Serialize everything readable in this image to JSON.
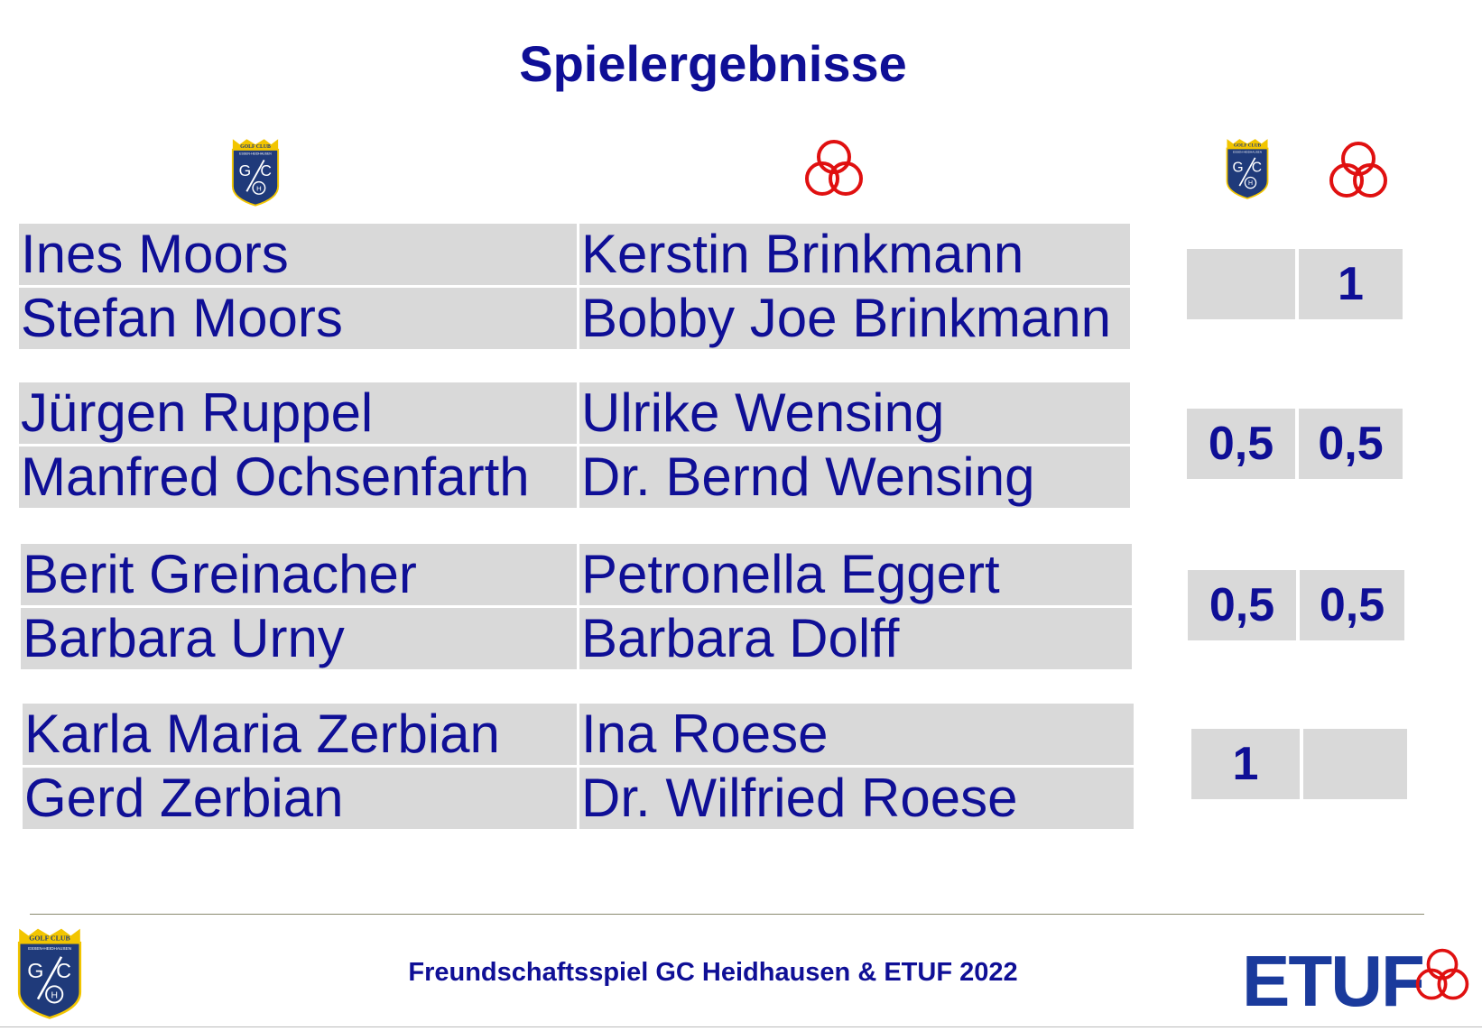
{
  "title": "Spielergebnisse",
  "logos": {
    "gc": {
      "top_text": "GOLF CLUB",
      "sub_text": "ESSEN-HEIDHAUSEN",
      "letters": "G/C",
      "color_blue": "#1f3a7a",
      "color_gold": "#f2c500"
    },
    "etuf_rings_color": "#e01010"
  },
  "pairings": [
    {
      "gc_players": [
        "Ines Moors",
        "Stefan Moors"
      ],
      "etuf_players": [
        "Kerstin Brinkmann",
        "Bobby Joe Brinkmann"
      ],
      "score_gc": "",
      "score_etuf": "1"
    },
    {
      "gc_players": [
        "Jürgen Ruppel",
        "Manfred Ochsenfarth"
      ],
      "etuf_players": [
        "Ulrike Wensing",
        "Dr. Bernd Wensing"
      ],
      "score_gc": "0,5",
      "score_etuf": "0,5"
    },
    {
      "gc_players": [
        "Berit Greinacher",
        "Barbara Urny"
      ],
      "etuf_players": [
        "Petronella Eggert",
        "Barbara Dolff"
      ],
      "score_gc": "0,5",
      "score_etuf": "0,5"
    },
    {
      "gc_players": [
        "Karla Maria Zerbian",
        "Gerd Zerbian"
      ],
      "etuf_players": [
        "Ina Roese",
        "Dr. Wilfried Roese"
      ],
      "score_gc": "1",
      "score_etuf": ""
    }
  ],
  "footer": {
    "text": "Freundschaftsspiel GC Heidhausen & ETUF 2022",
    "etuf_brand": "ETUF"
  }
}
